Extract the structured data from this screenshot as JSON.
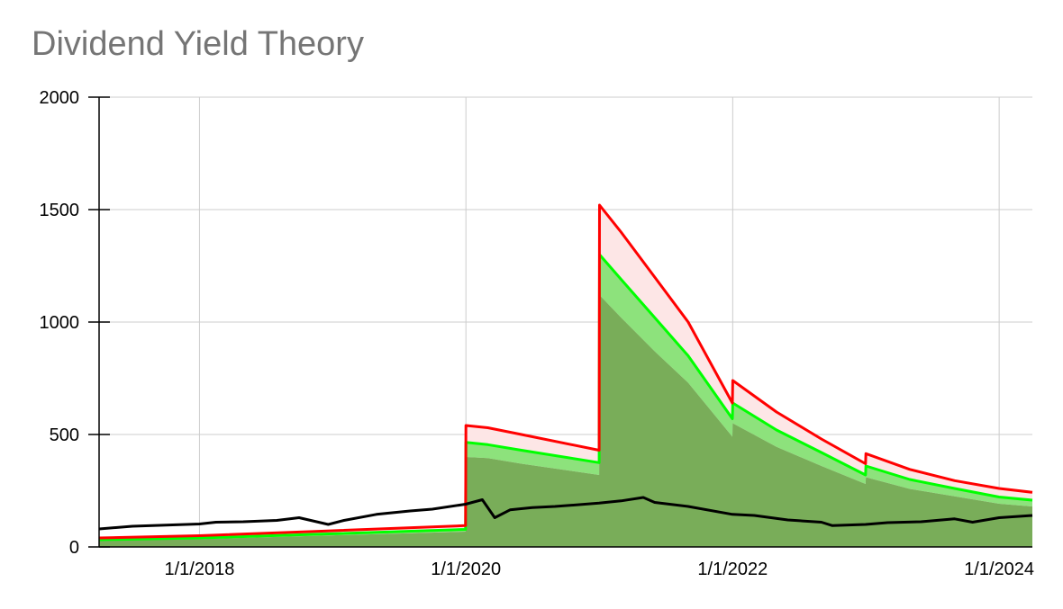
{
  "chart_data": {
    "type": "area",
    "title": "Dividend Yield Theory",
    "xlabel": "",
    "ylabel": "",
    "xlim": [
      "2017-04-01",
      "2024-04-01"
    ],
    "ylim": [
      0,
      2000
    ],
    "x_ticks": [
      "1/1/2018",
      "1/1/2020",
      "1/1/2022",
      "1/1/2024"
    ],
    "y_ticks": [
      "0",
      "500",
      "1000",
      "1500",
      "2000"
    ],
    "grid": true,
    "legend": "none",
    "colors": {
      "red_line": "#ff0000",
      "red_fill": "#fde6e6",
      "green_line": "#00ff00",
      "light_green_fill": "#8de27c",
      "dark_green_fill": "#79ad59",
      "black_line": "#000000",
      "grid": "#cccccc",
      "title": "#757575"
    },
    "series": [
      {
        "role": "upper bound (red line)",
        "points": [
          [
            "2017-04-01",
            40
          ],
          [
            "2018-01-01",
            50
          ],
          [
            "2018-12-01",
            70
          ],
          [
            "2019-12-31",
            95
          ],
          [
            "2020-01-01",
            540
          ],
          [
            "2020-03-01",
            530
          ],
          [
            "2020-06-01",
            500
          ],
          [
            "2020-12-31",
            430
          ],
          [
            "2021-01-01",
            1520
          ],
          [
            "2021-03-01",
            1400
          ],
          [
            "2021-06-01",
            1200
          ],
          [
            "2021-09-01",
            1000
          ],
          [
            "2021-12-31",
            640
          ],
          [
            "2022-01-01",
            740
          ],
          [
            "2022-05-01",
            600
          ],
          [
            "2022-09-01",
            480
          ],
          [
            "2022-12-31",
            370
          ],
          [
            "2023-01-01",
            415
          ],
          [
            "2023-05-01",
            345
          ],
          [
            "2023-09-01",
            295
          ],
          [
            "2024-01-01",
            260
          ],
          [
            "2024-04-01",
            243
          ]
        ]
      },
      {
        "role": "middle (green line)",
        "points": [
          [
            "2017-04-01",
            32
          ],
          [
            "2018-01-01",
            40
          ],
          [
            "2018-12-01",
            57
          ],
          [
            "2019-12-31",
            78
          ],
          [
            "2020-01-01",
            465
          ],
          [
            "2020-03-01",
            455
          ],
          [
            "2020-06-01",
            430
          ],
          [
            "2020-12-31",
            375
          ],
          [
            "2021-01-01",
            1300
          ],
          [
            "2021-03-01",
            1190
          ],
          [
            "2021-06-01",
            1020
          ],
          [
            "2021-09-01",
            850
          ],
          [
            "2021-12-31",
            570
          ],
          [
            "2022-01-01",
            640
          ],
          [
            "2022-05-01",
            520
          ],
          [
            "2022-09-01",
            420
          ],
          [
            "2022-12-31",
            320
          ],
          [
            "2023-01-01",
            360
          ],
          [
            "2023-05-01",
            300
          ],
          [
            "2023-09-01",
            260
          ],
          [
            "2024-01-01",
            222
          ],
          [
            "2024-04-01",
            208
          ]
        ]
      },
      {
        "role": "lower (dark green area)",
        "points": [
          [
            "2017-04-01",
            28
          ],
          [
            "2018-01-01",
            35
          ],
          [
            "2018-12-01",
            50
          ],
          [
            "2019-12-31",
            68
          ],
          [
            "2020-01-01",
            400
          ],
          [
            "2020-03-01",
            395
          ],
          [
            "2020-06-01",
            370
          ],
          [
            "2020-12-31",
            320
          ],
          [
            "2021-01-01",
            1120
          ],
          [
            "2021-03-01",
            1020
          ],
          [
            "2021-06-01",
            870
          ],
          [
            "2021-09-01",
            730
          ],
          [
            "2021-12-31",
            490
          ],
          [
            "2022-01-01",
            550
          ],
          [
            "2022-05-01",
            445
          ],
          [
            "2022-09-01",
            360
          ],
          [
            "2022-12-31",
            280
          ],
          [
            "2023-01-01",
            310
          ],
          [
            "2023-05-01",
            258
          ],
          [
            "2023-09-01",
            225
          ],
          [
            "2024-01-01",
            192
          ],
          [
            "2024-04-01",
            180
          ]
        ]
      },
      {
        "role": "price (black line)",
        "points": [
          [
            "2017-04-01",
            80
          ],
          [
            "2017-07-01",
            92
          ],
          [
            "2017-10-01",
            97
          ],
          [
            "2018-01-01",
            102
          ],
          [
            "2018-02-15",
            110
          ],
          [
            "2018-05-01",
            112
          ],
          [
            "2018-08-01",
            118
          ],
          [
            "2018-10-01",
            130
          ],
          [
            "2018-12-20",
            100
          ],
          [
            "2019-02-01",
            118
          ],
          [
            "2019-05-01",
            145
          ],
          [
            "2019-08-01",
            160
          ],
          [
            "2019-10-01",
            168
          ],
          [
            "2019-12-31",
            190
          ],
          [
            "2020-02-15",
            210
          ],
          [
            "2020-03-20",
            130
          ],
          [
            "2020-05-01",
            165
          ],
          [
            "2020-07-01",
            175
          ],
          [
            "2020-09-01",
            180
          ],
          [
            "2020-12-31",
            195
          ],
          [
            "2021-03-01",
            205
          ],
          [
            "2021-05-01",
            220
          ],
          [
            "2021-06-01",
            198
          ],
          [
            "2021-09-01",
            180
          ],
          [
            "2021-12-31",
            145
          ],
          [
            "2022-03-01",
            140
          ],
          [
            "2022-06-01",
            120
          ],
          [
            "2022-09-01",
            110
          ],
          [
            "2022-10-01",
            95
          ],
          [
            "2022-12-31",
            100
          ],
          [
            "2023-03-01",
            108
          ],
          [
            "2023-06-01",
            112
          ],
          [
            "2023-09-01",
            125
          ],
          [
            "2023-10-20",
            110
          ],
          [
            "2024-01-01",
            130
          ],
          [
            "2024-04-01",
            140
          ]
        ]
      }
    ]
  }
}
